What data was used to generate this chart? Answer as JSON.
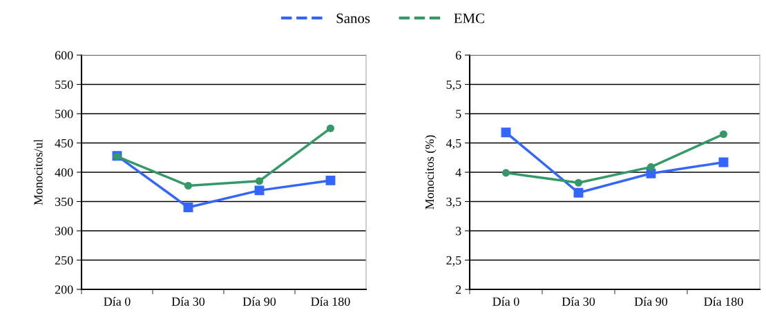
{
  "chart_data": [
    {
      "type": "line",
      "categories": [
        "Día 0",
        "Día 30",
        "Día 90",
        "Día 180"
      ],
      "ylabel": "Monocitos/ul",
      "ylim": [
        200,
        600
      ],
      "yticks": [
        200,
        250,
        300,
        350,
        400,
        450,
        500,
        550,
        600
      ],
      "grid": "y",
      "legend": "top",
      "series": [
        {
          "name": "Sanos",
          "color": "#3366ff",
          "marker": "square",
          "values": [
            428,
            340,
            369,
            386
          ]
        },
        {
          "name": "EMC",
          "color": "#339966",
          "marker": "circle",
          "values": [
            427,
            377,
            385,
            475
          ]
        }
      ]
    },
    {
      "type": "line",
      "categories": [
        "Día 0",
        "Día 30",
        "Día 90",
        "Día 180"
      ],
      "ylabel": "Monocitos (%)",
      "ylim": [
        2,
        6
      ],
      "yticks": [
        2,
        {
          "value": 2.5,
          "label": "2,5"
        },
        3,
        {
          "value": 3.5,
          "label": "3,5"
        },
        4,
        {
          "value": 4.5,
          "label": "4,5"
        },
        5,
        {
          "value": 5.5,
          "label": "5,5"
        },
        6
      ],
      "grid": "y",
      "series": [
        {
          "name": "Sanos",
          "color": "#3366ff",
          "marker": "square",
          "values": [
            4.68,
            3.65,
            3.98,
            4.17
          ]
        },
        {
          "name": "EMC",
          "color": "#339966",
          "marker": "circle",
          "values": [
            3.99,
            3.82,
            4.09,
            4.65
          ]
        }
      ]
    }
  ]
}
